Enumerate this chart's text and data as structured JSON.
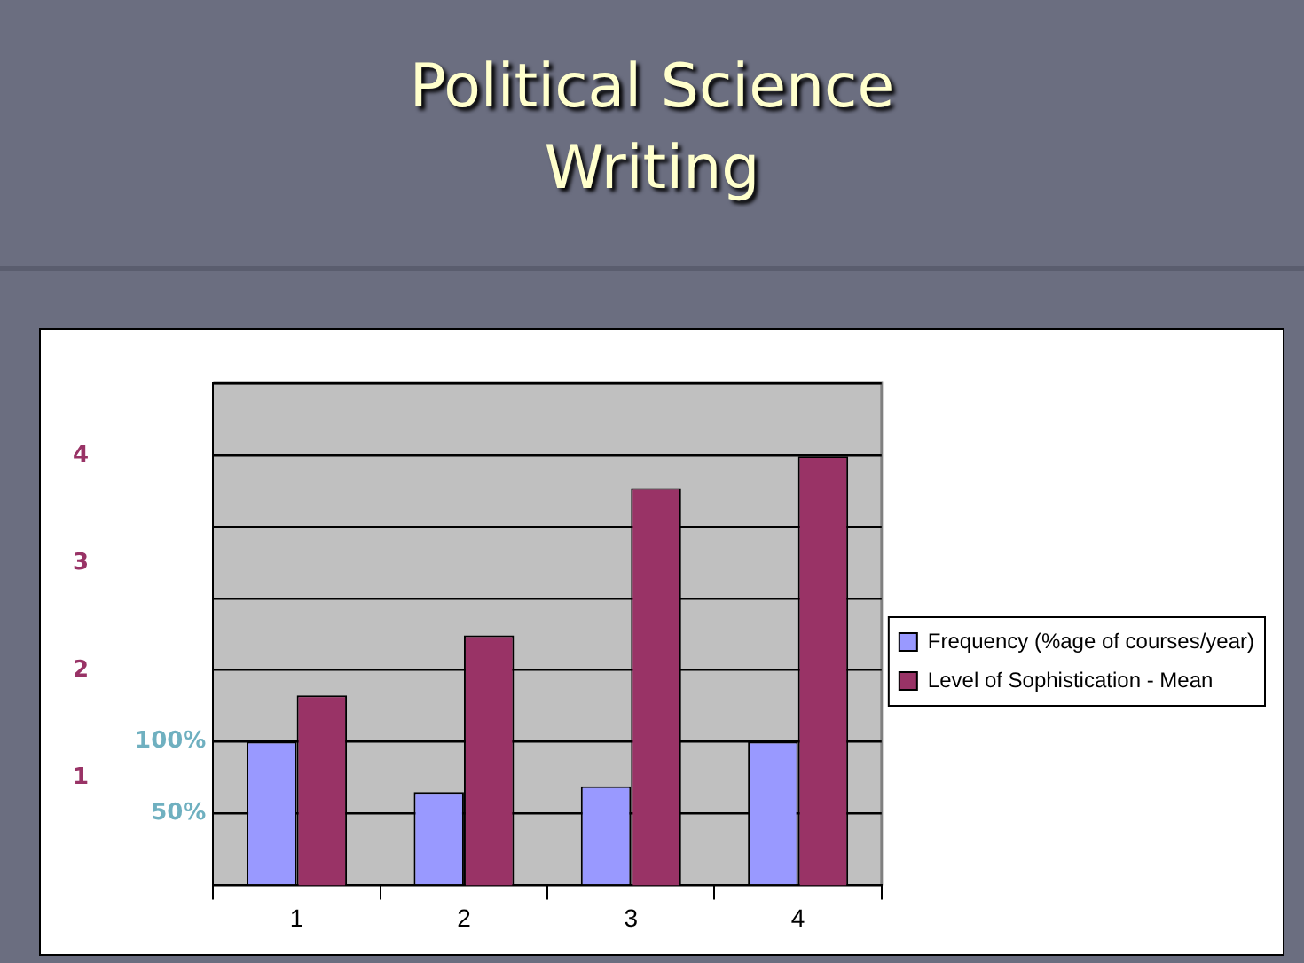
{
  "chart_data": {
    "type": "bar",
    "title": "Political Science Writing",
    "categories": [
      "1",
      "2",
      "3",
      "4"
    ],
    "series": [
      {
        "name": "Frequency (%age of courses/year)",
        "color": "#9999ff",
        "values": [
          100,
          65,
          69,
          100
        ]
      },
      {
        "name": "Level of Sophistication - Mean",
        "color": "#993366",
        "axis": "y2",
        "values": [
          1.77,
          2.33,
          3.7,
          4.0
        ]
      }
    ],
    "ylim": [
      0,
      350
    ],
    "yticks": [
      {
        "value": 0,
        "label": null
      },
      {
        "value": 50,
        "label": "50%"
      },
      {
        "value": 100,
        "label": "100%"
      },
      {
        "value": 150,
        "label": null
      },
      {
        "value": 200,
        "label": null
      },
      {
        "value": 250,
        "label": null
      },
      {
        "value": 300,
        "label": null
      },
      {
        "value": 350,
        "label": null
      }
    ],
    "y2lim": [
      0,
      4.68
    ],
    "y2ticks": [
      1,
      2,
      3,
      4
    ],
    "grid": "y",
    "legend": "right"
  }
}
